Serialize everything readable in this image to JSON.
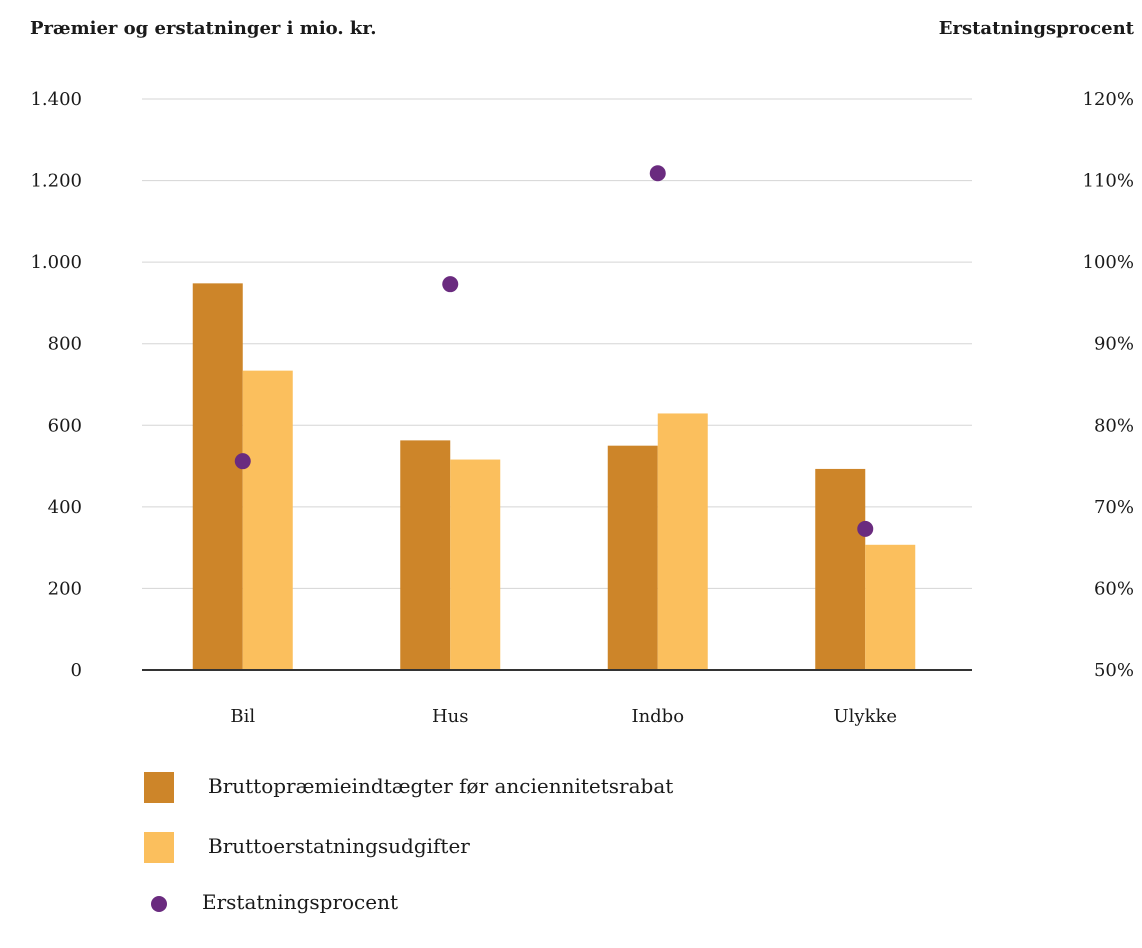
{
  "chart_data": {
    "type": "bar",
    "left_axis_title": "Præmier og erstatninger i mio. kr.",
    "right_axis_title": "Erstatningsprocent",
    "categories": [
      "Bil",
      "Hus",
      "Indbo",
      "Ulykke"
    ],
    "ylim": [
      0,
      1400
    ],
    "yticks": [
      0,
      200,
      400,
      600,
      800,
      1000,
      1200,
      1400
    ],
    "ytick_labels": [
      "0",
      "200",
      "400",
      "600",
      "800",
      "1.000",
      "1.200",
      "1.400"
    ],
    "y2lim": [
      50,
      120
    ],
    "y2ticks": [
      50,
      60,
      70,
      80,
      90,
      100,
      110,
      120
    ],
    "y2tick_labels": [
      "50%",
      "60%",
      "70%",
      "80%",
      "90%",
      "100%",
      "110%",
      "120%"
    ],
    "grid": true,
    "legend_position": "bottom-left",
    "series": [
      {
        "name": "Bruttopræmieindtægter før anciennitetsrabat",
        "type": "bar",
        "axis": "left",
        "color": "#cd8529",
        "values": [
          948,
          563,
          550,
          493
        ]
      },
      {
        "name": "Bruttoerstatningsudgifter",
        "type": "bar",
        "axis": "left",
        "color": "#fbbf5d",
        "values": [
          734,
          516,
          629,
          307
        ]
      },
      {
        "name": "Erstatningsprocent",
        "type": "scatter",
        "axis": "right",
        "color": "#6a2b7f",
        "values": [
          75.6,
          97.3,
          110.9,
          67.3
        ]
      }
    ]
  }
}
